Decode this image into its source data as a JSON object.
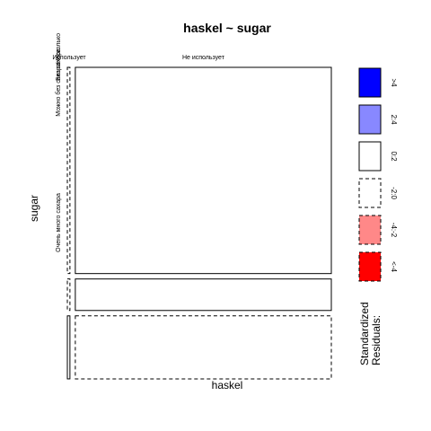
{
  "chart_data": {
    "type": "mosaic",
    "title": "haskel ~ sugar",
    "xlabel": "haskel",
    "ylabel": "sugar",
    "x_categories": [
      "Использует",
      "Не использует"
    ],
    "y_categories": [
      "Без сахара",
      "Можно без сахара",
      "Очень много сахара"
    ],
    "y_categories_overlap_label": "Несколько",
    "x_proportions": [
      0.01,
      0.99
    ],
    "y_proportions": [
      0.72,
      0.11,
      0.22
    ],
    "residual_styles": {
      "Использует": [
        "dashed",
        "dashed",
        "solid"
      ],
      "Не использует": [
        "solid",
        "solid",
        "dashed"
      ]
    },
    "legend": {
      "title": "Standardized\nResiduals:",
      "title_lines": [
        "Standardized",
        "Residuals:"
      ],
      "items": [
        {
          "label": ">4",
          "fill": "#0000ff",
          "dashed": false
        },
        {
          "label": "2:4",
          "fill": "#8888ff",
          "dashed": false
        },
        {
          "label": "0:2",
          "fill": "#ffffff",
          "dashed": false
        },
        {
          "label": "-2:0",
          "fill": "#ffffff",
          "dashed": true
        },
        {
          "label": "-4:-2",
          "fill": "#ff8888",
          "dashed": true
        },
        {
          "label": "<-4",
          "fill": "#ff0000",
          "dashed": true
        }
      ]
    }
  }
}
